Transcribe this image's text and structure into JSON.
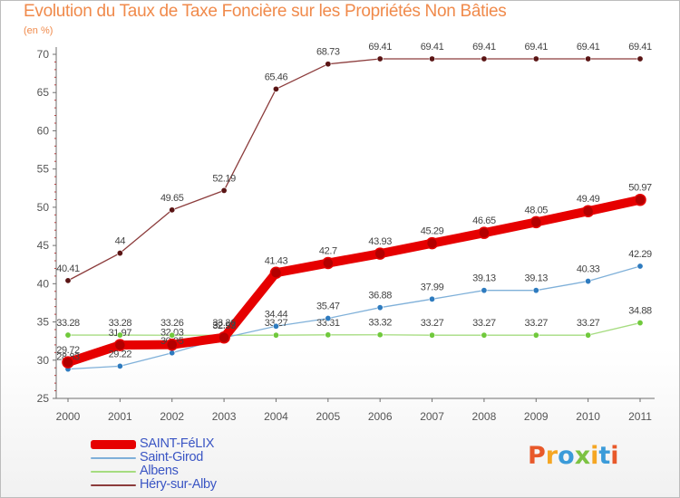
{
  "header": {
    "title": "Evolution du Taux de Taxe Foncière sur les Propriétés Non Bâties",
    "unit": "(en %)"
  },
  "logo": {
    "text": "Proxiti",
    "colors": [
      "#e8592a",
      "#f5a623",
      "#3b9bd9",
      "#7cc242",
      "#f5a623",
      "#3b9bd9",
      "#e8592a"
    ]
  },
  "chart_data": {
    "type": "line",
    "title": "Evolution du Taux de Taxe Foncière sur les Propriétés Non Bâties",
    "ylabel": "(en %)",
    "xlabel": "",
    "x": [
      "2000",
      "2001",
      "2002",
      "2003",
      "2004",
      "2005",
      "2006",
      "2007",
      "2008",
      "2009",
      "2010",
      "2011"
    ],
    "ylim": [
      25,
      70
    ],
    "yticks": [
      25,
      30,
      35,
      40,
      45,
      50,
      55,
      60,
      65,
      70
    ],
    "grid": false,
    "legend": "bottom-left",
    "series": [
      {
        "name": "SAINT-FéLIX",
        "color": "#e60000",
        "dot": "#b30000",
        "weight": "thick",
        "values": [
          29.72,
          31.97,
          32.03,
          32.97,
          41.43,
          42.7,
          43.93,
          45.29,
          46.65,
          48.05,
          49.49,
          50.97
        ],
        "labels": [
          "29.72",
          "31.97",
          "32.03",
          "32.97",
          "41.43",
          "42.7",
          "43.93",
          "45.29",
          "46.65",
          "48.05",
          "49.49",
          "50.97"
        ]
      },
      {
        "name": "Saint-Girod",
        "color": "#7fb0d9",
        "dot": "#2e7bbf",
        "weight": "thin",
        "values": [
          28.83,
          29.22,
          30.95,
          32.93,
          34.44,
          35.47,
          36.88,
          37.99,
          39.13,
          39.13,
          40.33,
          42.29
        ],
        "labels": [
          "28.83",
          "29.22",
          "30.95",
          "32.93",
          "34.44",
          "35.47",
          "36.88",
          "37.99",
          "39.13",
          "39.13",
          "40.33",
          "42.29"
        ]
      },
      {
        "name": "Albens",
        "color": "#a6dc80",
        "dot": "#70c93c",
        "weight": "thin",
        "values": [
          33.28,
          33.28,
          33.26,
          33.26,
          33.27,
          33.31,
          33.32,
          33.27,
          33.27,
          33.27,
          33.27,
          34.88
        ],
        "labels": [
          "33.28",
          "33.28",
          "33.26",
          "33.26",
          "33.27",
          "33.31",
          "33.32",
          "33.27",
          "33.27",
          "33.27",
          "33.27",
          "34.88"
        ]
      },
      {
        "name": "Héry-sur-Alby",
        "color": "#8c3c3c",
        "dot": "#5a1414",
        "weight": "thin",
        "values": [
          40.41,
          44,
          49.65,
          52.19,
          65.46,
          68.73,
          69.41,
          69.41,
          69.41,
          69.41,
          69.41,
          69.41
        ],
        "labels": [
          "40.41",
          "44",
          "49.65",
          "52.19",
          "65.46",
          "68.73",
          "69.41",
          "69.41",
          "69.41",
          "69.41",
          "69.41",
          "69.41"
        ]
      }
    ]
  }
}
